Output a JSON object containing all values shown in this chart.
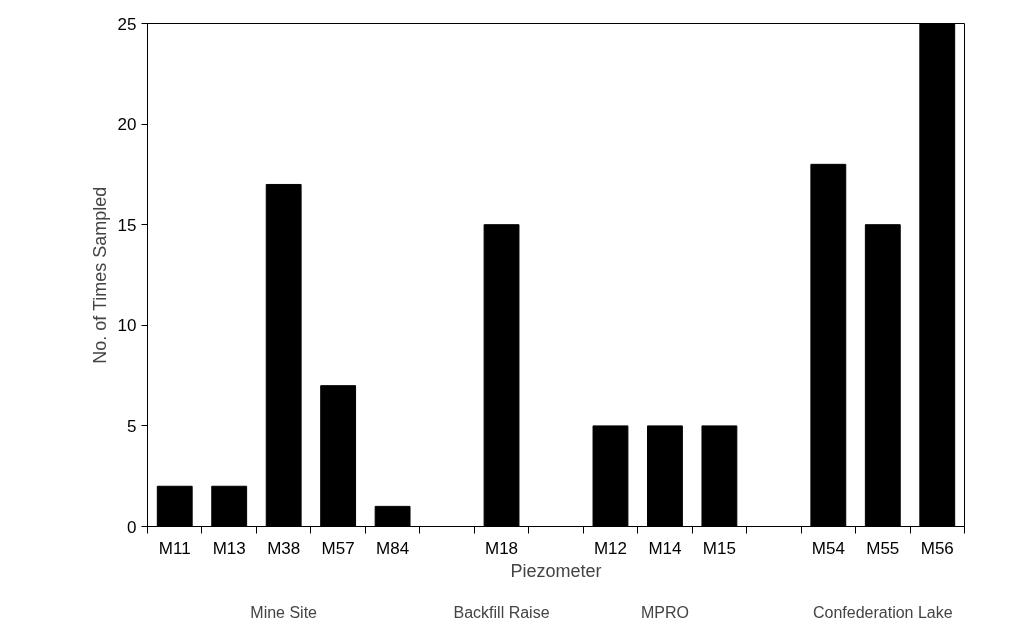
{
  "chart_data": {
    "type": "bar",
    "xlabel": "Piezometer",
    "ylabel": "No. of Times Sampled",
    "categories": [
      "M11",
      "M13",
      "M38",
      "M57",
      "M84",
      null,
      "M18",
      null,
      "M12",
      "M14",
      "M15",
      null,
      "M54",
      "M55",
      "M56"
    ],
    "values": [
      2,
      2,
      17,
      7,
      1,
      null,
      15,
      null,
      5,
      5,
      5,
      null,
      18,
      15,
      25
    ],
    "color": "#000000",
    "ylim": [
      0,
      25
    ],
    "yticks": [
      0,
      5,
      10,
      15,
      20,
      25
    ],
    "grid": false,
    "annotations": [
      "Mine Site",
      "Backfill Raise",
      "MPRO",
      "Confederation Lake"
    ]
  }
}
